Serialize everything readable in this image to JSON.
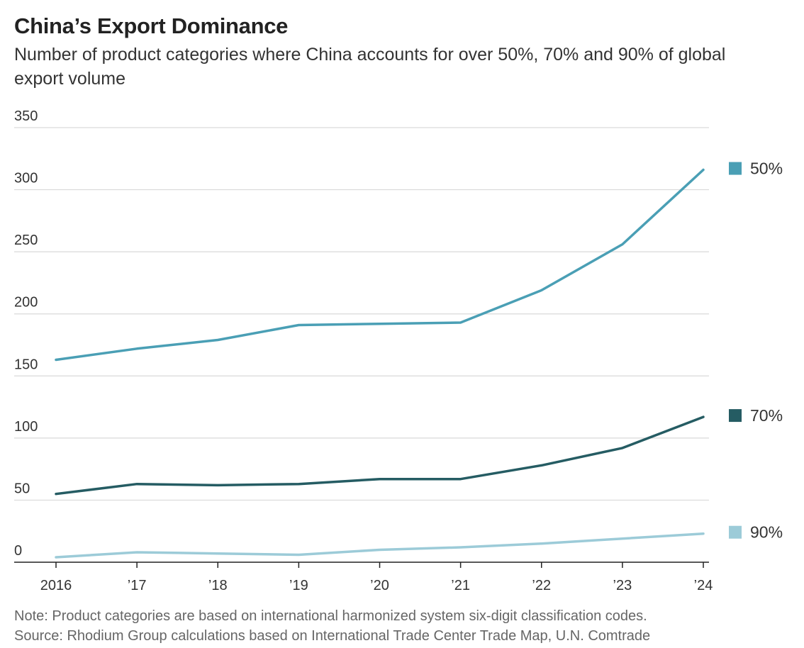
{
  "header": {
    "title": "China’s Export Dominance",
    "subtitle": "Number of product categories where China accounts for over 50%, 70% and 90% of global export volume"
  },
  "footer": {
    "note": "Note: Product categories are based on international harmonized system six-digit classification codes.",
    "source": "Source: Rhodium Group calculations based on International Trade Center Trade Map, U.N. Comtrade"
  },
  "chart_data": {
    "type": "line",
    "title": "China’s Export Dominance",
    "subtitle": "Number of product categories where China accounts for over 50%, 70% and 90% of global export volume",
    "xlabel": "",
    "ylabel": "",
    "x": [
      "2016",
      "’17",
      "’18",
      "’19",
      "’20",
      "’21",
      "’22",
      "’23",
      "’24"
    ],
    "yticks": [
      0,
      50,
      100,
      150,
      200,
      250,
      300,
      350
    ],
    "ylim": [
      0,
      350
    ],
    "grid": true,
    "legend": "right",
    "series": [
      {
        "name": "50%",
        "color": "#4a9fb5",
        "values": [
          163,
          172,
          179,
          191,
          192,
          193,
          219,
          256,
          316
        ]
      },
      {
        "name": "70%",
        "color": "#255c63",
        "values": [
          55,
          63,
          62,
          63,
          67,
          67,
          78,
          92,
          117
        ]
      },
      {
        "name": "90%",
        "color": "#9ccbd8",
        "values": [
          4,
          8,
          7,
          6,
          10,
          12,
          15,
          19,
          23
        ]
      }
    ]
  }
}
